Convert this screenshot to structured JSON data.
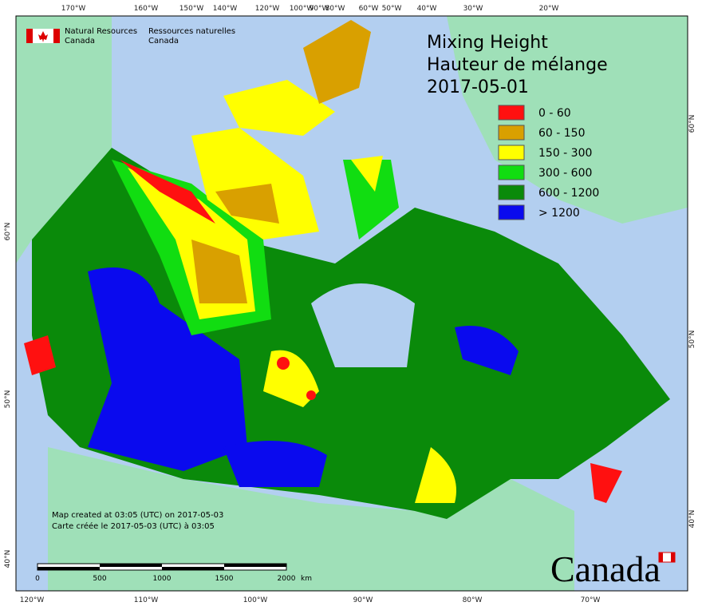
{
  "header": {
    "agency_en": "Natural Resources",
    "country_en": "Canada",
    "agency_fr": "Ressources naturelles",
    "country_fr": "Canada"
  },
  "title": {
    "line1": "Mixing Height",
    "line2": "Hauteur de mélange",
    "date": "2017-05-01"
  },
  "legend": [
    {
      "label": "0 - 60",
      "color": "#ff1010"
    },
    {
      "label": "60 - 150",
      "color": "#d9a000"
    },
    {
      "label": "150 - 300",
      "color": "#ffff00"
    },
    {
      "label": "300 - 600",
      "color": "#11dd11"
    },
    {
      "label": "600 - 1200",
      "color": "#0a8a0a"
    },
    {
      "label": "> 1200",
      "color": "#0a0aee"
    }
  ],
  "graticule": {
    "top": [
      "170°W",
      "160°W",
      "150°W",
      "140°W",
      "120°W",
      "100°W",
      "90°W",
      "80°W",
      "60°W",
      "50°W",
      "40°W",
      "30°W",
      "20°W"
    ],
    "bottom": [
      "120°W",
      "110°W",
      "100°W",
      "90°W",
      "80°W",
      "70°W"
    ],
    "left": [
      "60°N",
      "50°N",
      "40°N"
    ],
    "right": [
      "60°N",
      "50°N",
      "40°N"
    ]
  },
  "notes": [
    "Map created at 03:05 (UTC) on 2017-05-03",
    "Carte créée le 2017-05-03 (UTC) à 03:05"
  ],
  "scale_bar": {
    "ticks": [
      "0",
      "500",
      "1000",
      "1500",
      "2000"
    ],
    "unit": "km"
  },
  "wordmark": "Canada"
}
